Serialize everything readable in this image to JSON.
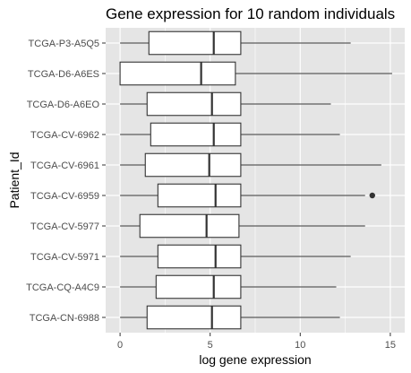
{
  "chart_data": {
    "type": "boxplot",
    "orientation": "horizontal",
    "title": "Gene expression for 10 random individuals",
    "xlabel": "log gene expression",
    "ylabel": "Patient_Id",
    "xlim": [
      -0.8,
      15.8
    ],
    "x_ticks": [
      0,
      5,
      10,
      15
    ],
    "grid": true,
    "background": "#e5e5e5",
    "grid_color": "#ffffff",
    "box_fill": "#ffffff",
    "line_color": "#333333",
    "categories": [
      "TCGA-P3-A5Q5",
      "TCGA-D6-A6ES",
      "TCGA-D6-A6EO",
      "TCGA-CV-6962",
      "TCGA-CV-6961",
      "TCGA-CV-6959",
      "TCGA-CV-5977",
      "TCGA-CV-5971",
      "TCGA-CQ-A4C9",
      "TCGA-CN-6988"
    ],
    "boxes": [
      {
        "min": 0,
        "q1": 1.6,
        "median": 5.2,
        "q3": 6.7,
        "max": 12.8,
        "outliers": []
      },
      {
        "min": 0,
        "q1": 0.0,
        "median": 4.5,
        "q3": 6.4,
        "max": 15.1,
        "outliers": []
      },
      {
        "min": 0,
        "q1": 1.5,
        "median": 5.1,
        "q3": 6.7,
        "max": 11.7,
        "outliers": []
      },
      {
        "min": 0,
        "q1": 1.7,
        "median": 5.2,
        "q3": 6.7,
        "max": 12.2,
        "outliers": []
      },
      {
        "min": 0,
        "q1": 1.4,
        "median": 4.95,
        "q3": 6.7,
        "max": 14.5,
        "outliers": []
      },
      {
        "min": 0,
        "q1": 2.1,
        "median": 5.3,
        "q3": 6.7,
        "max": 13.6,
        "outliers": [
          14.0
        ]
      },
      {
        "min": 0,
        "q1": 1.1,
        "median": 4.8,
        "q3": 6.6,
        "max": 13.6,
        "outliers": []
      },
      {
        "min": 0,
        "q1": 2.1,
        "median": 5.3,
        "q3": 6.7,
        "max": 12.8,
        "outliers": []
      },
      {
        "min": 0,
        "q1": 2.0,
        "median": 5.2,
        "q3": 6.7,
        "max": 12.0,
        "outliers": []
      },
      {
        "min": 0,
        "q1": 1.5,
        "median": 5.1,
        "q3": 6.7,
        "max": 12.2,
        "outliers": []
      }
    ]
  }
}
